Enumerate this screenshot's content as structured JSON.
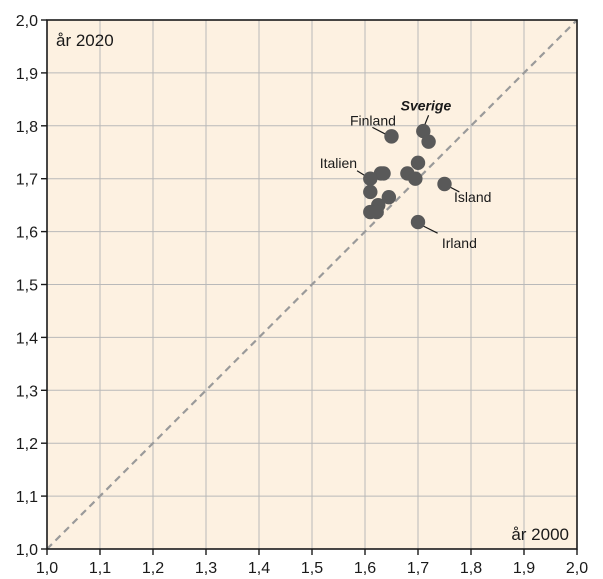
{
  "chart_data": {
    "type": "scatter",
    "xlabel": "år 2000",
    "ylabel": "år 2020",
    "xlim": [
      1.0,
      2.0
    ],
    "ylim": [
      1.0,
      2.0
    ],
    "x_ticks": [
      "1,0",
      "1,1",
      "1,2",
      "1,3",
      "1,4",
      "1,5",
      "1,6",
      "1,7",
      "1,8",
      "1,9",
      "2,0"
    ],
    "y_ticks": [
      "1,0",
      "1,1",
      "1,2",
      "1,3",
      "1,4",
      "1,5",
      "1,6",
      "1,7",
      "1,8",
      "1,9",
      "2,0"
    ],
    "grid": true,
    "reference_line": "y = x",
    "points": [
      {
        "x": 1.65,
        "y": 1.78
      },
      {
        "x": 1.71,
        "y": 1.79
      },
      {
        "x": 1.72,
        "y": 1.77
      },
      {
        "x": 1.7,
        "y": 1.73
      },
      {
        "x": 1.68,
        "y": 1.71
      },
      {
        "x": 1.695,
        "y": 1.7
      },
      {
        "x": 1.63,
        "y": 1.71
      },
      {
        "x": 1.635,
        "y": 1.71
      },
      {
        "x": 1.61,
        "y": 1.7
      },
      {
        "x": 1.61,
        "y": 1.675
      },
      {
        "x": 1.645,
        "y": 1.665
      },
      {
        "x": 1.625,
        "y": 1.65
      },
      {
        "x": 1.61,
        "y": 1.637
      },
      {
        "x": 1.622,
        "y": 1.637
      },
      {
        "x": 1.75,
        "y": 1.69
      },
      {
        "x": 1.7,
        "y": 1.618
      }
    ],
    "annotations": [
      {
        "text": "Sverige",
        "bold": true,
        "px": 1.71,
        "py": 1.79,
        "tx": 1.715,
        "ty": 1.838,
        "anchor": "middle",
        "lx1": 1.72,
        "ly1": 1.82,
        "lx2": 1.712,
        "ly2": 1.8
      },
      {
        "text": "Finland",
        "bold": false,
        "px": 1.65,
        "py": 1.78,
        "tx": 1.615,
        "ty": 1.81,
        "anchor": "middle",
        "lx1": 1.614,
        "ly1": 1.797,
        "lx2": 1.643,
        "ly2": 1.782
      },
      {
        "text": "Italien",
        "bold": false,
        "px": 1.61,
        "py": 1.7,
        "tx": 1.585,
        "ty": 1.73,
        "anchor": "end",
        "lx1": 1.585,
        "ly1": 1.715,
        "lx2": 1.603,
        "ly2": 1.704
      },
      {
        "text": "Island",
        "bold": false,
        "px": 1.75,
        "py": 1.69,
        "tx": 1.768,
        "ty": 1.665,
        "anchor": "start",
        "lx1": 1.757,
        "ly1": 1.686,
        "lx2": 1.778,
        "ly2": 1.675
      },
      {
        "text": "Irland",
        "bold": false,
        "px": 1.7,
        "py": 1.618,
        "tx": 1.745,
        "ty": 1.578,
        "anchor": "start",
        "lx1": 1.707,
        "ly1": 1.612,
        "lx2": 1.737,
        "ly2": 1.597
      }
    ]
  },
  "style": {
    "plot_background": "#fdf1e1",
    "grid_color": "#b9b9b9",
    "frame_color": "#1a1a1a",
    "marker_color": "#595959",
    "diagonal_color": "#9a9a9a"
  }
}
